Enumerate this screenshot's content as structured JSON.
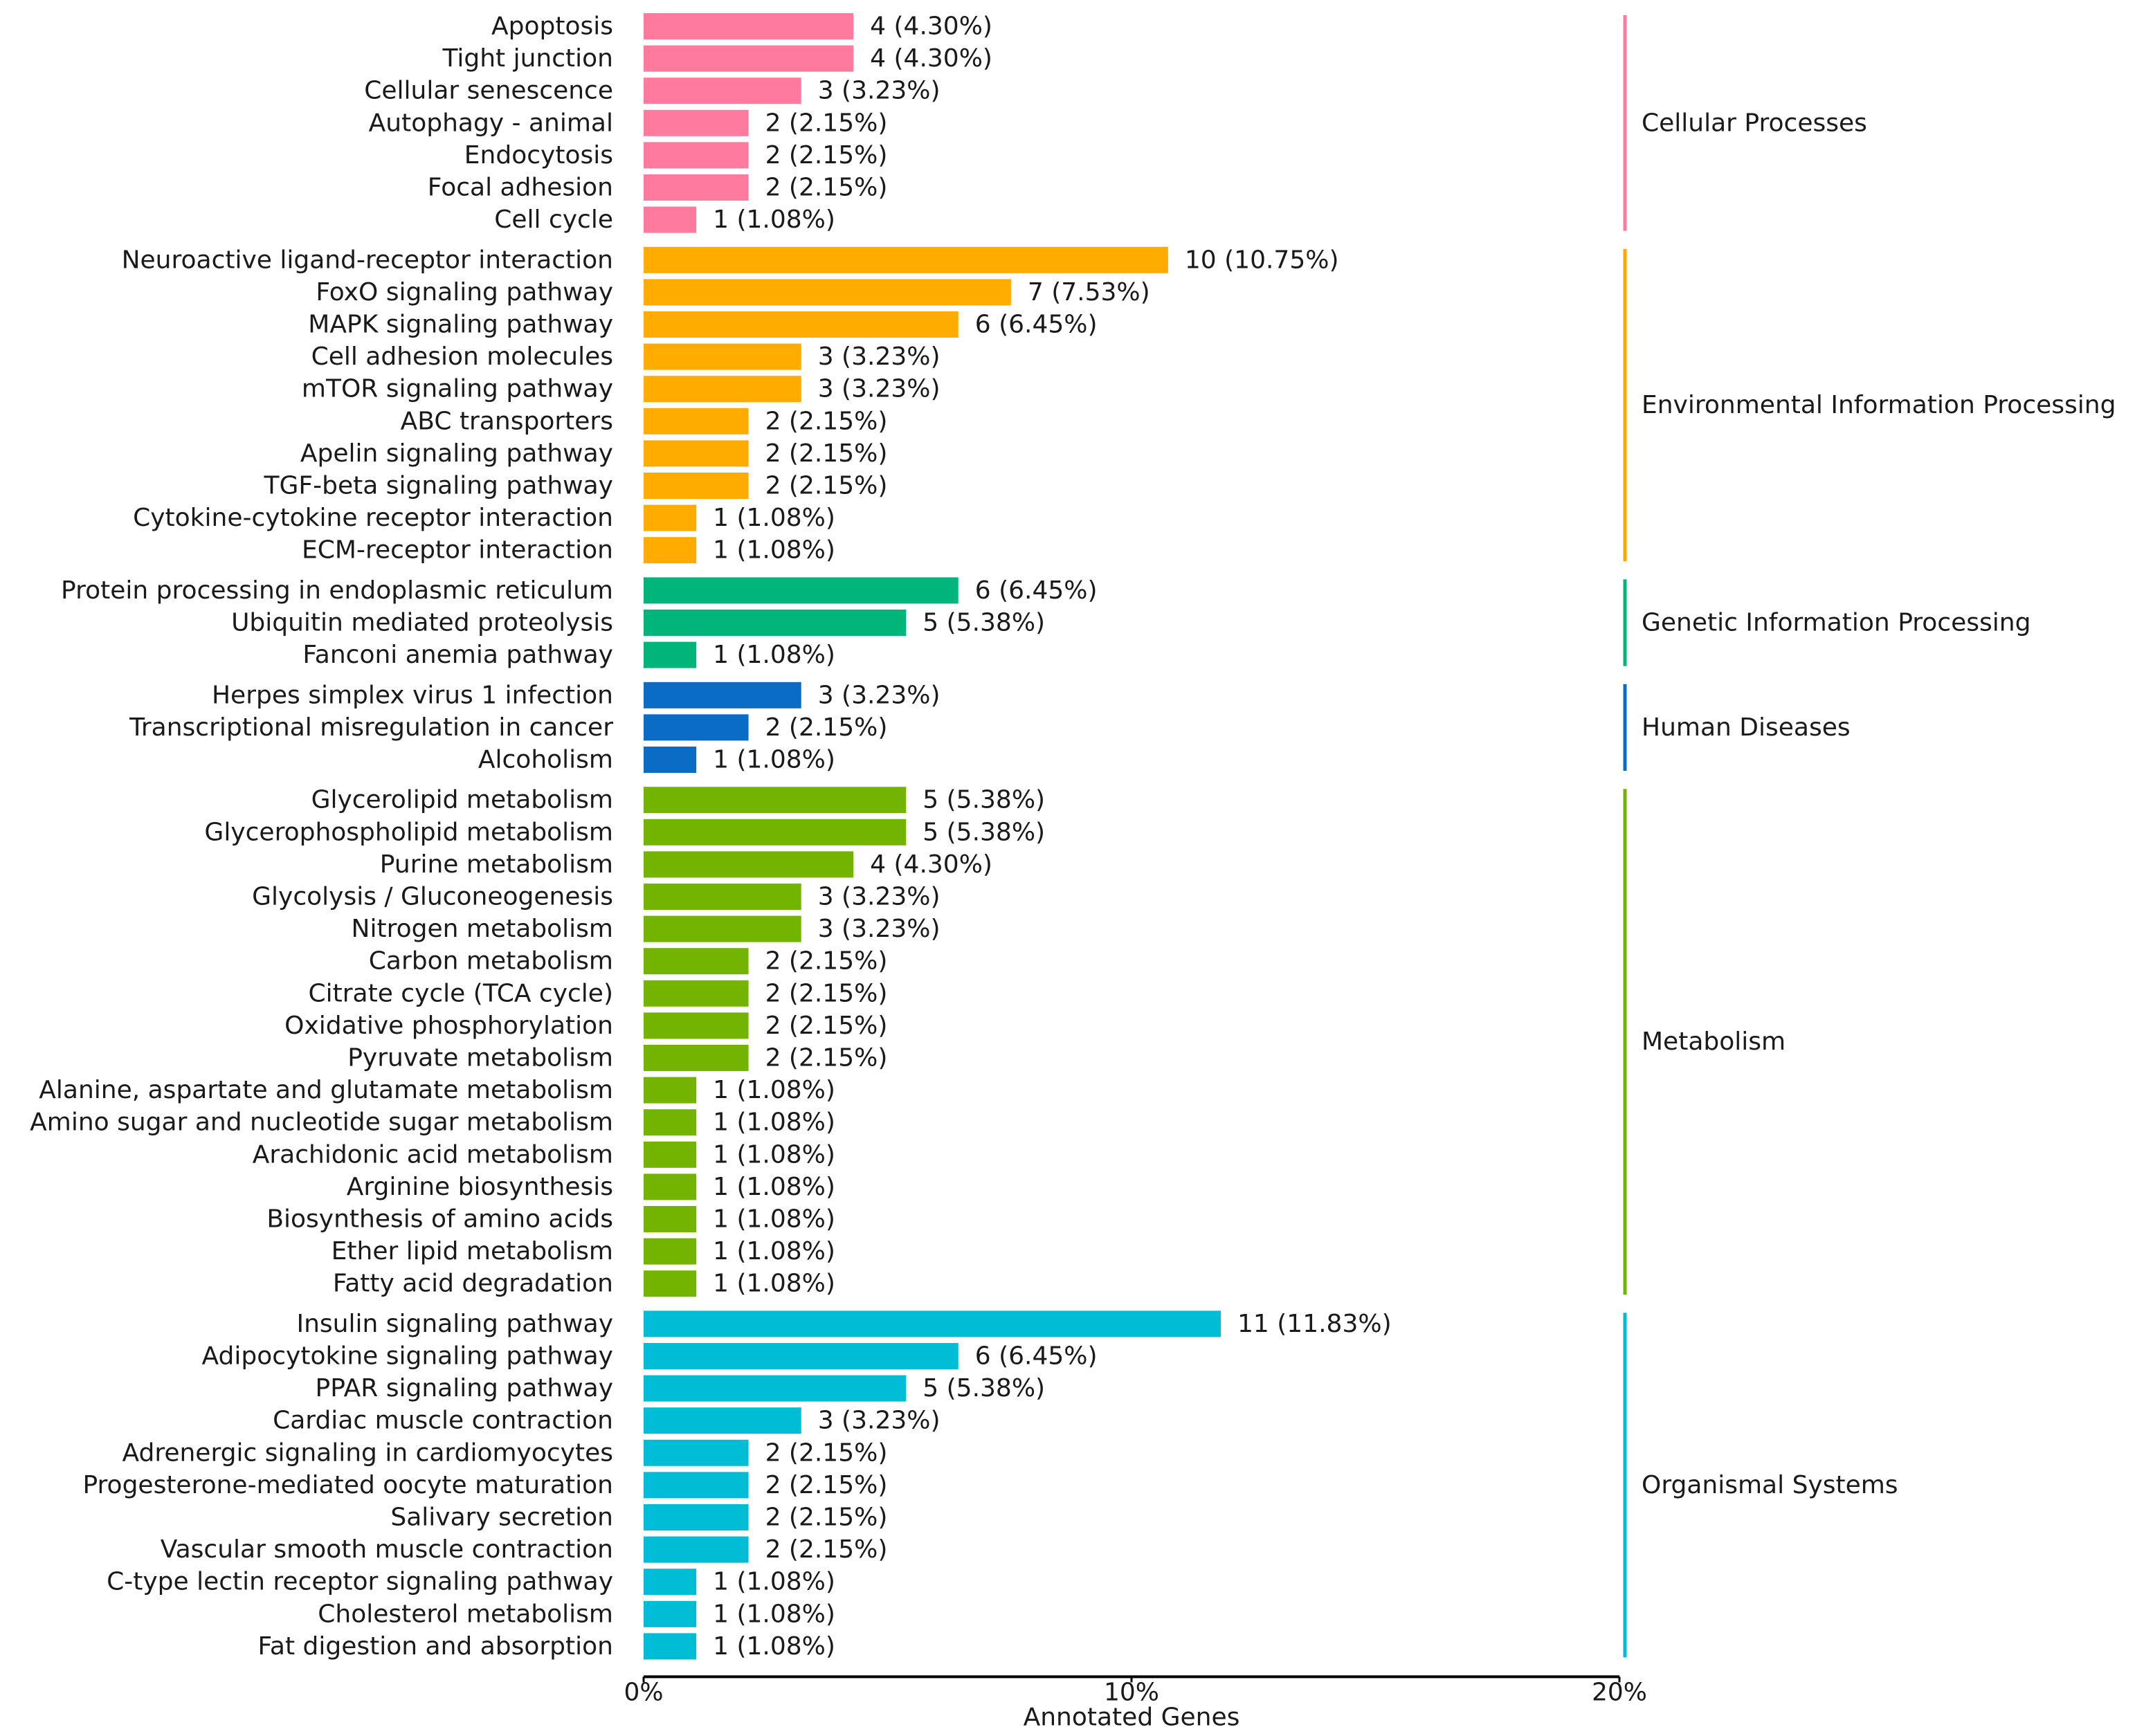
{
  "chart_data": {
    "type": "bar",
    "orientation": "horizontal",
    "title": "",
    "xlabel": "Annotated Genes",
    "ylabel": "",
    "xlim": [
      0,
      20
    ],
    "xticks": [
      {
        "value": 0,
        "label": "0%"
      },
      {
        "value": 10,
        "label": "10%"
      },
      {
        "value": 20,
        "label": "20%"
      }
    ],
    "grid": false,
    "legend": "none",
    "groups": [
      {
        "name": "Cellular Processes",
        "color": "#FF7A9C",
        "items": [
          {
            "label": "Apoptosis",
            "count": 4,
            "percent": 4.3,
            "value_label": "4 (4.30%)"
          },
          {
            "label": "Tight junction",
            "count": 4,
            "percent": 4.3,
            "value_label": "4 (4.30%)"
          },
          {
            "label": "Cellular senescence",
            "count": 3,
            "percent": 3.23,
            "value_label": "3 (3.23%)"
          },
          {
            "label": "Autophagy - animal",
            "count": 2,
            "percent": 2.15,
            "value_label": "2 (2.15%)"
          },
          {
            "label": "Endocytosis",
            "count": 2,
            "percent": 2.15,
            "value_label": "2 (2.15%)"
          },
          {
            "label": "Focal adhesion",
            "count": 2,
            "percent": 2.15,
            "value_label": "2 (2.15%)"
          },
          {
            "label": "Cell cycle",
            "count": 1,
            "percent": 1.08,
            "value_label": "1 (1.08%)"
          }
        ]
      },
      {
        "name": "Environmental Information Processing",
        "color": "#FFAB00",
        "items": [
          {
            "label": "Neuroactive ligand-receptor interaction",
            "count": 10,
            "percent": 10.75,
            "value_label": "10 (10.75%)"
          },
          {
            "label": "FoxO signaling pathway",
            "count": 7,
            "percent": 7.53,
            "value_label": "7 (7.53%)"
          },
          {
            "label": "MAPK signaling pathway",
            "count": 6,
            "percent": 6.45,
            "value_label": "6 (6.45%)"
          },
          {
            "label": "Cell adhesion molecules",
            "count": 3,
            "percent": 3.23,
            "value_label": "3 (3.23%)"
          },
          {
            "label": "mTOR signaling pathway",
            "count": 3,
            "percent": 3.23,
            "value_label": "3 (3.23%)"
          },
          {
            "label": "ABC transporters",
            "count": 2,
            "percent": 2.15,
            "value_label": "2 (2.15%)"
          },
          {
            "label": "Apelin signaling pathway",
            "count": 2,
            "percent": 2.15,
            "value_label": "2 (2.15%)"
          },
          {
            "label": "TGF-beta signaling pathway",
            "count": 2,
            "percent": 2.15,
            "value_label": "2 (2.15%)"
          },
          {
            "label": "Cytokine-cytokine receptor interaction",
            "count": 1,
            "percent": 1.08,
            "value_label": "1 (1.08%)"
          },
          {
            "label": "ECM-receptor interaction",
            "count": 1,
            "percent": 1.08,
            "value_label": "1 (1.08%)"
          }
        ]
      },
      {
        "name": "Genetic Information Processing",
        "color": "#00B57A",
        "items": [
          {
            "label": "Protein processing in endoplasmic reticulum",
            "count": 6,
            "percent": 6.45,
            "value_label": "6 (6.45%)"
          },
          {
            "label": "Ubiquitin mediated proteolysis",
            "count": 5,
            "percent": 5.38,
            "value_label": "5 (5.38%)"
          },
          {
            "label": "Fanconi anemia pathway",
            "count": 1,
            "percent": 1.08,
            "value_label": "1 (1.08%)"
          }
        ]
      },
      {
        "name": "Human Diseases",
        "color": "#0A6CC4",
        "items": [
          {
            "label": "Herpes simplex virus 1 infection",
            "count": 3,
            "percent": 3.23,
            "value_label": "3 (3.23%)"
          },
          {
            "label": "Transcriptional misregulation in cancer",
            "count": 2,
            "percent": 2.15,
            "value_label": "2 (2.15%)"
          },
          {
            "label": "Alcoholism",
            "count": 1,
            "percent": 1.08,
            "value_label": "1 (1.08%)"
          }
        ]
      },
      {
        "name": "Metabolism",
        "color": "#73B400",
        "items": [
          {
            "label": "Glycerolipid metabolism",
            "count": 5,
            "percent": 5.38,
            "value_label": "5 (5.38%)"
          },
          {
            "label": "Glycerophospholipid metabolism",
            "count": 5,
            "percent": 5.38,
            "value_label": "5 (5.38%)"
          },
          {
            "label": "Purine metabolism",
            "count": 4,
            "percent": 4.3,
            "value_label": "4 (4.30%)"
          },
          {
            "label": "Glycolysis / Gluconeogenesis",
            "count": 3,
            "percent": 3.23,
            "value_label": "3 (3.23%)"
          },
          {
            "label": "Nitrogen metabolism",
            "count": 3,
            "percent": 3.23,
            "value_label": "3 (3.23%)"
          },
          {
            "label": "Carbon metabolism",
            "count": 2,
            "percent": 2.15,
            "value_label": "2 (2.15%)"
          },
          {
            "label": "Citrate cycle (TCA cycle)",
            "count": 2,
            "percent": 2.15,
            "value_label": "2 (2.15%)"
          },
          {
            "label": "Oxidative phosphorylation",
            "count": 2,
            "percent": 2.15,
            "value_label": "2 (2.15%)"
          },
          {
            "label": "Pyruvate metabolism",
            "count": 2,
            "percent": 2.15,
            "value_label": "2 (2.15%)"
          },
          {
            "label": "Alanine, aspartate and glutamate metabolism",
            "count": 1,
            "percent": 1.08,
            "value_label": "1 (1.08%)"
          },
          {
            "label": "Amino sugar and nucleotide sugar metabolism",
            "count": 1,
            "percent": 1.08,
            "value_label": "1 (1.08%)"
          },
          {
            "label": "Arachidonic acid metabolism",
            "count": 1,
            "percent": 1.08,
            "value_label": "1 (1.08%)"
          },
          {
            "label": "Arginine biosynthesis",
            "count": 1,
            "percent": 1.08,
            "value_label": "1 (1.08%)"
          },
          {
            "label": "Biosynthesis of amino acids",
            "count": 1,
            "percent": 1.08,
            "value_label": "1 (1.08%)"
          },
          {
            "label": "Ether lipid metabolism",
            "count": 1,
            "percent": 1.08,
            "value_label": "1 (1.08%)"
          },
          {
            "label": "Fatty acid degradation",
            "count": 1,
            "percent": 1.08,
            "value_label": "1 (1.08%)"
          }
        ]
      },
      {
        "name": "Organismal Systems",
        "color": "#00BCD4",
        "items": [
          {
            "label": "Insulin signaling pathway",
            "count": 11,
            "percent": 11.83,
            "value_label": "11 (11.83%)"
          },
          {
            "label": "Adipocytokine signaling pathway",
            "count": 6,
            "percent": 6.45,
            "value_label": "6 (6.45%)"
          },
          {
            "label": "PPAR signaling pathway",
            "count": 5,
            "percent": 5.38,
            "value_label": "5 (5.38%)"
          },
          {
            "label": "Cardiac muscle contraction",
            "count": 3,
            "percent": 3.23,
            "value_label": "3 (3.23%)"
          },
          {
            "label": "Adrenergic signaling in cardiomyocytes",
            "count": 2,
            "percent": 2.15,
            "value_label": "2 (2.15%)"
          },
          {
            "label": "Progesterone-mediated oocyte maturation",
            "count": 2,
            "percent": 2.15,
            "value_label": "2 (2.15%)"
          },
          {
            "label": "Salivary secretion",
            "count": 2,
            "percent": 2.15,
            "value_label": "2 (2.15%)"
          },
          {
            "label": "Vascular smooth muscle contraction",
            "count": 2,
            "percent": 2.15,
            "value_label": "2 (2.15%)"
          },
          {
            "label": "C-type lectin receptor signaling pathway",
            "count": 1,
            "percent": 1.08,
            "value_label": "1 (1.08%)"
          },
          {
            "label": "Cholesterol metabolism",
            "count": 1,
            "percent": 1.08,
            "value_label": "1 (1.08%)"
          },
          {
            "label": "Fat digestion and absorption",
            "count": 1,
            "percent": 1.08,
            "value_label": "1 (1.08%)"
          }
        ]
      }
    ]
  }
}
